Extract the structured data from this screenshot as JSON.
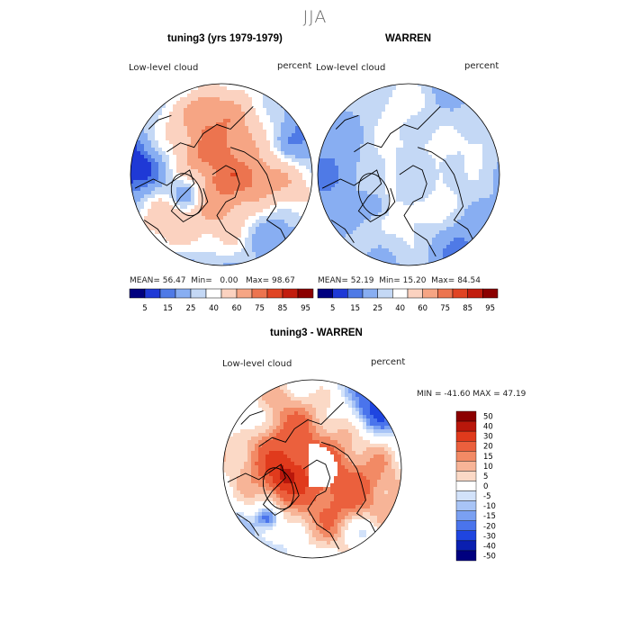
{
  "page": {
    "season": "JJA",
    "colors": {
      "low": "#00007f",
      "high": "#8b0000",
      "mid": "#ffffff",
      "coast": "#000000"
    }
  },
  "chart_data": [
    {
      "type": "heatmap",
      "projection": "polar-stereographic-north",
      "title": "tuning3 (yrs 1979-1979)",
      "variable": "Low-level cloud",
      "units": "percent",
      "stats": {
        "mean_label": "MEAN=",
        "mean": "56.47",
        "min_label": "Min=",
        "min": "0.00",
        "max_label": "Max=",
        "max": "98.67"
      },
      "colorbar": {
        "levels": [
          5,
          15,
          25,
          40,
          60,
          75,
          85,
          95
        ],
        "range": [
          0,
          100
        ]
      },
      "field": "model"
    },
    {
      "type": "heatmap",
      "projection": "polar-stereographic-north",
      "title": "WARREN",
      "variable": "Low-level cloud",
      "units": "percent",
      "stats": {
        "mean_label": "MEAN=",
        "mean": "52.19",
        "min_label": "Min=",
        "min": "15.20",
        "max_label": "Max=",
        "max": "84.54"
      },
      "colorbar": {
        "levels": [
          5,
          15,
          25,
          40,
          60,
          75,
          85,
          95
        ],
        "range": [
          0,
          100
        ]
      },
      "field": "obs"
    },
    {
      "type": "heatmap",
      "projection": "polar-stereographic-north",
      "title": "tuning3 - WARREN",
      "variable": "Low-level cloud",
      "units": "percent",
      "stats": {
        "text": "MIN = -41.60  MAX =  47.19"
      },
      "colorbar": {
        "levels": [
          50,
          40,
          30,
          20,
          15,
          10,
          5,
          0,
          -5,
          -10,
          -15,
          -20,
          -30,
          -40,
          -50
        ],
        "range": [
          -55,
          55
        ]
      },
      "field": "diff"
    }
  ]
}
